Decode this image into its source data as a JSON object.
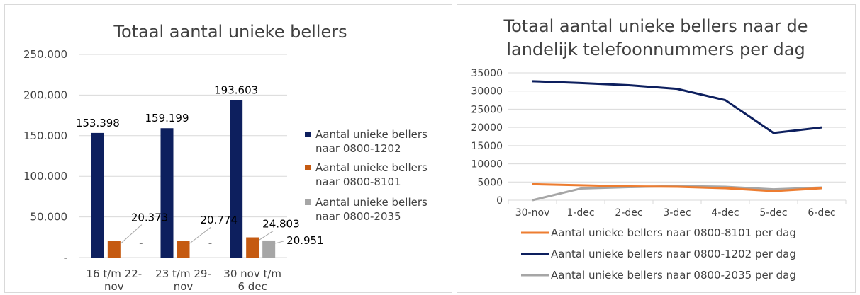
{
  "chart_data": [
    {
      "type": "bar",
      "title": "Totaal aantal unieke bellers",
      "categories": [
        [
          "16 t/m 22-",
          "nov"
        ],
        [
          "23 t/m 29-",
          "nov"
        ],
        [
          "30 nov t/m",
          "6 dec"
        ]
      ],
      "y_ticks": [
        "250.000",
        "200.000",
        "150.000",
        "100.000",
        "50.000",
        "-"
      ],
      "ylim": [
        0,
        250000
      ],
      "grid": true,
      "legend_position": "right",
      "series": [
        {
          "name": "Aantal unieke bellers naar 0800-1202",
          "legend_lines": [
            "Aantal unieke bellers",
            "naar 0800-1202"
          ],
          "color": "#0d1f5e",
          "values": [
            153398,
            159199,
            193603
          ],
          "labels": [
            "153.398",
            "159.199",
            "193.603"
          ]
        },
        {
          "name": "Aantal unieke bellers naar 0800-8101",
          "legend_lines": [
            "Aantal unieke bellers",
            "naar 0800-8101"
          ],
          "color": "#c55a11",
          "values": [
            20373,
            20774,
            24803
          ],
          "labels": [
            "20.373",
            "20.774",
            "24.803"
          ]
        },
        {
          "name": "Aantal unieke bellers naar 0800-2035",
          "legend_lines": [
            "Aantal unieke bellers",
            "naar 0800-2035"
          ],
          "color": "#a6a6a6",
          "values": [
            0,
            0,
            20951
          ],
          "labels": [
            "-",
            "-",
            "20.951"
          ]
        }
      ]
    },
    {
      "type": "line",
      "title": [
        "Totaal aantal unieke bellers naar de",
        "landelijk telefoonnummers per dag"
      ],
      "categories": [
        "30-nov",
        "1-dec",
        "2-dec",
        "3-dec",
        "4-dec",
        "5-dec",
        "6-dec"
      ],
      "y_ticks": [
        "35000",
        "30000",
        "25000",
        "20000",
        "15000",
        "10000",
        "5000",
        "0"
      ],
      "ylim": [
        0,
        35000
      ],
      "grid": true,
      "legend_position": "bottom",
      "series": [
        {
          "name": "Aantal unieke bellers naar 0800-8101 per dag",
          "color": "#ed7d31",
          "values": [
            4400,
            4100,
            3800,
            3700,
            3300,
            2500,
            3300
          ]
        },
        {
          "name": "Aantal unieke bellers naar 0800-1202 per dag",
          "color": "#0d1f5e",
          "values": [
            32700,
            32200,
            31600,
            30600,
            27500,
            18500,
            20000
          ]
        },
        {
          "name": "Aantal unieke bellers naar 0800-2035 per dag",
          "color": "#a6a6a6",
          "values": [
            0,
            3200,
            3600,
            3900,
            3700,
            3000,
            3500
          ]
        }
      ]
    }
  ]
}
